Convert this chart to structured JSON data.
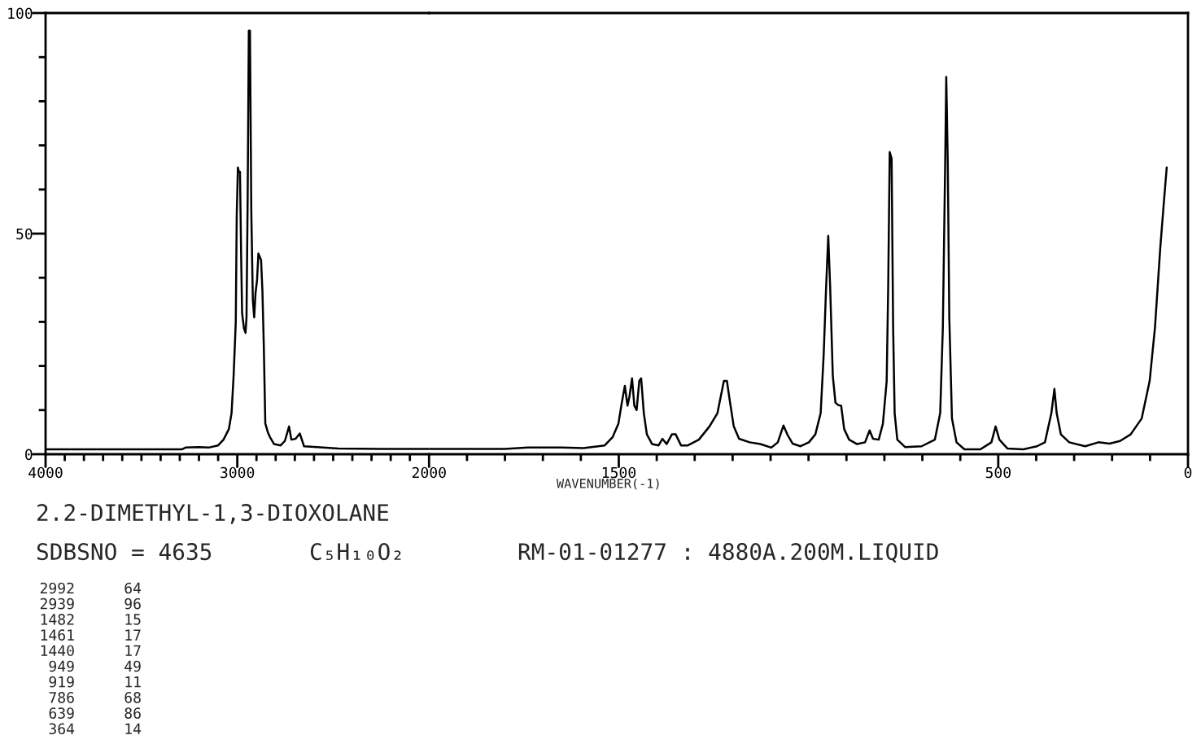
{
  "chart_data": [
    {
      "type": "line",
      "series": [
        {
          "color": "#000000",
          "x": [
            4000,
            3800,
            3600,
            3400,
            3290,
            3270,
            3200,
            3150,
            3100,
            3072,
            3044,
            3030,
            3019,
            3008,
            3003,
            2997,
            2992,
            2986,
            2980,
            2975,
            2965,
            2957,
            2952,
            2946,
            2940,
            2934,
            2927,
            2919,
            2912,
            2905,
            2897,
            2890,
            2876,
            2869,
            2862,
            2854,
            2841,
            2830,
            2808,
            2774,
            2752,
            2730,
            2718,
            2696,
            2674,
            2652,
            2585,
            2473,
            2250,
            2000
          ],
          "values": [
            1.1,
            1.1,
            1.1,
            1.1,
            1.1,
            1.5,
            1.6,
            1.5,
            2,
            3.3,
            5.7,
            9.3,
            18,
            30,
            54,
            65,
            64,
            64,
            45,
            32,
            28.5,
            27.5,
            31,
            58,
            96,
            96,
            55,
            35,
            31,
            36.5,
            39.5,
            45.5,
            44,
            37,
            25,
            7,
            5,
            3.9,
            2.3,
            2,
            3,
            6.3,
            3.3,
            3.5,
            4.7,
            1.8,
            1.6,
            1.3,
            1.2,
            1.2
          ]
        }
      ],
      "xlim": [
        4000,
        2000
      ],
      "xticks": [
        4000,
        {
          "value": 3900,
          "label": null
        },
        {
          "value": 3800,
          "label": null
        },
        {
          "value": 3700,
          "label": null
        },
        {
          "value": 3600,
          "label": null
        },
        {
          "value": 3500,
          "label": null
        },
        {
          "value": 3400,
          "label": null
        },
        {
          "value": 3300,
          "label": null
        },
        {
          "value": 3200,
          "label": null
        },
        {
          "value": 3100,
          "label": null
        },
        3000,
        {
          "value": 2900,
          "label": null
        },
        {
          "value": 2800,
          "label": null
        },
        {
          "value": 2700,
          "label": null
        },
        {
          "value": 2600,
          "label": null
        },
        {
          "value": 2500,
          "label": null
        },
        {
          "value": 2400,
          "label": null
        },
        {
          "value": 2300,
          "label": null
        },
        {
          "value": 2200,
          "label": null
        },
        {
          "value": 2100,
          "label": null
        },
        2000
      ],
      "ylim": [
        0,
        100
      ],
      "yticks": [
        0,
        {
          "value": 10,
          "label": null
        },
        {
          "value": 20,
          "label": null
        },
        {
          "value": 30,
          "label": null
        },
        {
          "value": 40,
          "label": null
        },
        50,
        {
          "value": 60,
          "label": null
        },
        {
          "value": 70,
          "label": null
        },
        {
          "value": 80,
          "label": null
        },
        {
          "value": 90,
          "label": null
        },
        100
      ],
      "annotations": [
        "2.2-DIMETHYL-1,3-DIOXOLANE",
        "SDBSNO = 4635",
        "C₅H₁₀O₂",
        "RM-01-01277 : 4880A.200M.LIQUID",
        "2992",
        "64",
        "2939",
        "96",
        "1482",
        "15",
        "1461",
        "17",
        "1440",
        "17",
        "949",
        "49",
        "919",
        "11",
        "786",
        "68",
        "639",
        "86",
        "364",
        "14"
      ]
    },
    {
      "type": "line",
      "series": [
        {
          "color": "#000000",
          "x": [
            2000,
            1800,
            1740,
            1650,
            1593,
            1537,
            1516,
            1501,
            1492,
            1484,
            1477,
            1472,
            1465,
            1459,
            1453,
            1446,
            1441,
            1434,
            1426,
            1412,
            1395,
            1385,
            1374,
            1360,
            1350,
            1336,
            1318,
            1289,
            1261,
            1240,
            1223,
            1215,
            1209,
            1197,
            1183,
            1155,
            1127,
            1098,
            1081,
            1066,
            1056,
            1042,
            1021,
            999,
            982,
            968,
            960,
            954,
            948,
            943,
            936,
            929,
            921,
            914,
            906,
            893,
            872,
            851,
            839,
            830,
            815,
            804,
            794,
            790,
            786,
            781,
            777,
            773,
            766,
            745,
            702,
            667,
            653,
            646,
            640,
            637,
            633,
            629,
            622,
            610,
            589,
            547,
            518,
            507,
            497,
            476,
            434,
            398,
            377,
            360,
            352,
            346,
            335,
            313,
            271,
            236,
            207,
            179,
            151,
            122,
            101,
            87,
            73,
            63,
            56
          ],
          "values": [
            1.2,
            1.2,
            1.5,
            1.5,
            1.4,
            2,
            3.9,
            6.9,
            11.7,
            15.5,
            11,
            13,
            17.2,
            11,
            10,
            16.6,
            17.2,
            9.3,
            4.5,
            2.3,
            2,
            3.5,
            2.3,
            4.5,
            4.5,
            2,
            2,
            3.3,
            6.3,
            9.3,
            16.6,
            16.6,
            13,
            6.3,
            3.5,
            2.7,
            2.3,
            1.5,
            2.7,
            6.5,
            4.5,
            2.4,
            1.8,
            2.7,
            4.5,
            9.3,
            22.6,
            37,
            49.5,
            38,
            17.8,
            11.7,
            11.1,
            11,
            5.7,
            3.3,
            2.3,
            2.7,
            5.4,
            3.5,
            3.3,
            6.9,
            16.6,
            38,
            68.5,
            67,
            28.7,
            9.3,
            3.3,
            1.6,
            1.8,
            3.3,
            9.3,
            28.7,
            65,
            85.5,
            66,
            31,
            8.1,
            2.7,
            1.1,
            1.1,
            2.7,
            6.3,
            3.3,
            1.3,
            1.1,
            1.8,
            2.7,
            9.3,
            14.8,
            9.3,
            4.5,
            2.7,
            1.8,
            2.7,
            2.4,
            3,
            4.5,
            8.1,
            16.6,
            28.7,
            46.8,
            57.7,
            65
          ]
        }
      ],
      "xlim": [
        2000,
        0
      ],
      "xticks": [
        {
          "value": 1900,
          "label": null
        },
        {
          "value": 1800,
          "label": null
        },
        {
          "value": 1700,
          "label": null
        },
        {
          "value": 1600,
          "label": null
        },
        1500,
        {
          "value": 1400,
          "label": null
        },
        {
          "value": 1300,
          "label": null
        },
        {
          "value": 1200,
          "label": null
        },
        {
          "value": 1100,
          "label": null
        },
        {
          "value": 1000,
          "label": null
        },
        {
          "value": 900,
          "label": null
        },
        {
          "value": 800,
          "label": null
        },
        {
          "value": 700,
          "label": null
        },
        {
          "value": 600,
          "label": null
        },
        500,
        {
          "value": 400,
          "label": null
        },
        {
          "value": 300,
          "label": null
        },
        {
          "value": 200,
          "label": null
        },
        {
          "value": 100,
          "label": null
        },
        0
      ],
      "ylim": [
        0,
        100
      ],
      "tick_labels": "x",
      "xlabel": "WAVENUMBER(-1)"
    }
  ]
}
